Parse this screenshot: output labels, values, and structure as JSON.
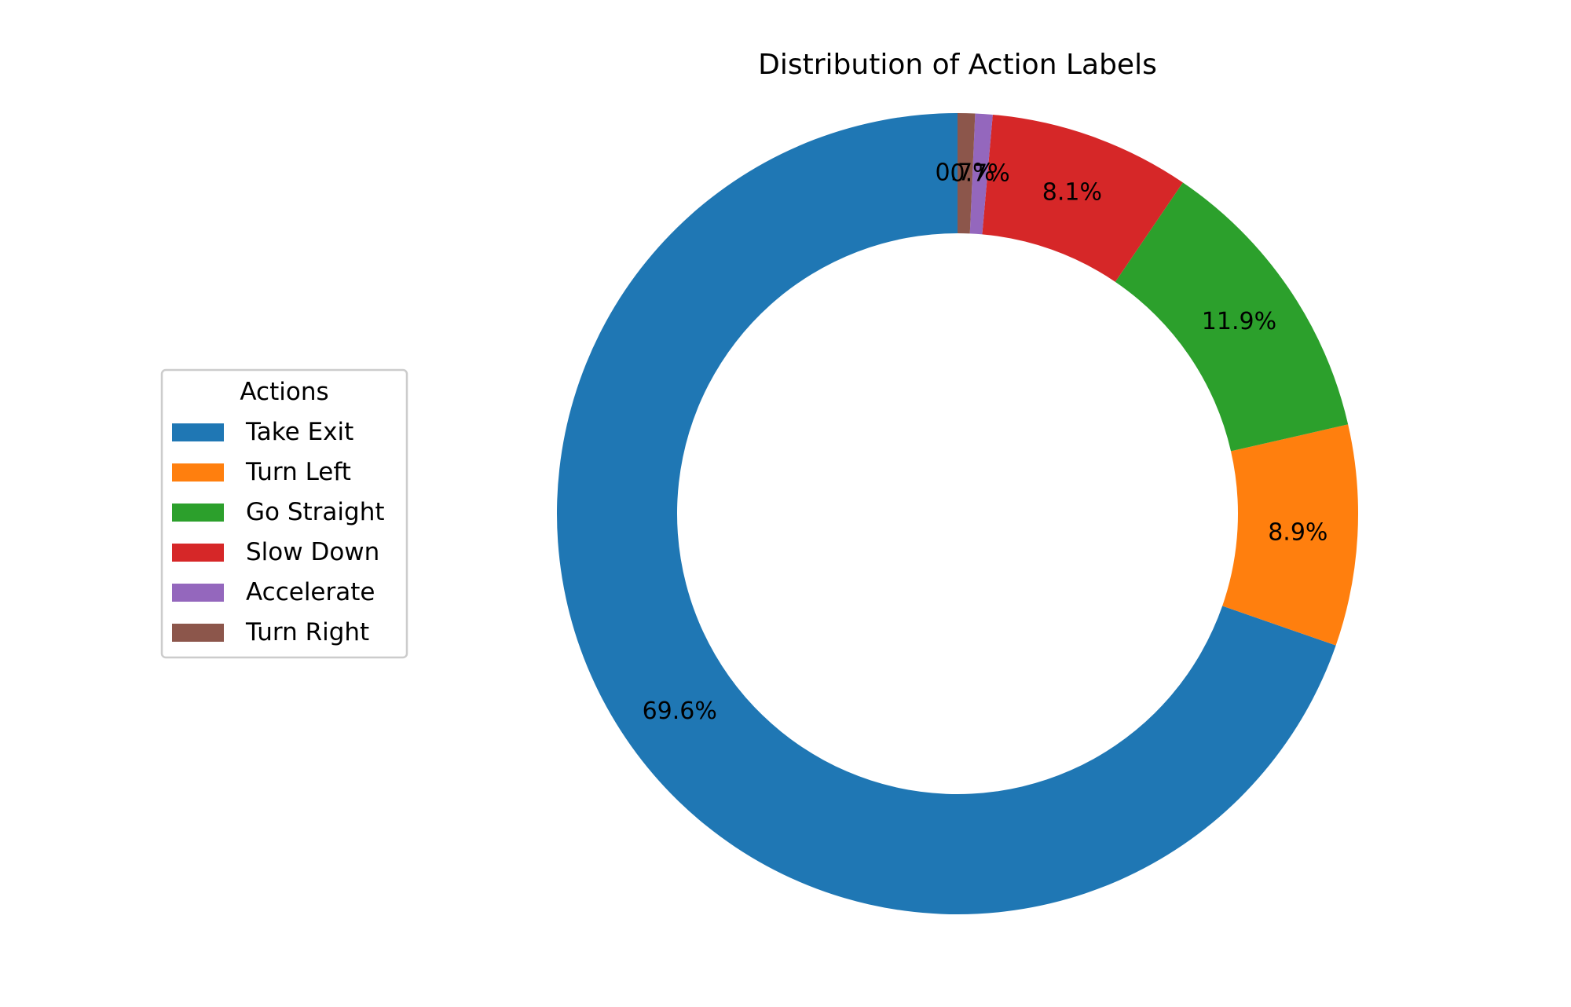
{
  "chart_data": {
    "type": "pie",
    "title": "Distribution of Action Labels",
    "donut": true,
    "start": "top, counter-clockwise",
    "legend": {
      "title": "Actions",
      "placement": "center-left"
    },
    "slices": [
      {
        "label": "Take Exit",
        "value": 69.6,
        "display": "69.6%",
        "color": "#1f77b4"
      },
      {
        "label": "Turn Left",
        "value": 8.9,
        "display": "8.9%",
        "color": "#ff7f0e"
      },
      {
        "label": "Go Straight",
        "value": 11.9,
        "display": "11.9%",
        "color": "#2ca02c"
      },
      {
        "label": "Slow Down",
        "value": 8.1,
        "display": "8.1%",
        "color": "#d62728"
      },
      {
        "label": "Accelerate",
        "value": 0.7,
        "display": "0.7%",
        "color": "#9467bd"
      },
      {
        "label": "Turn Right",
        "value": 0.7,
        "display": "0.7%",
        "color": "#8c564b"
      }
    ]
  }
}
